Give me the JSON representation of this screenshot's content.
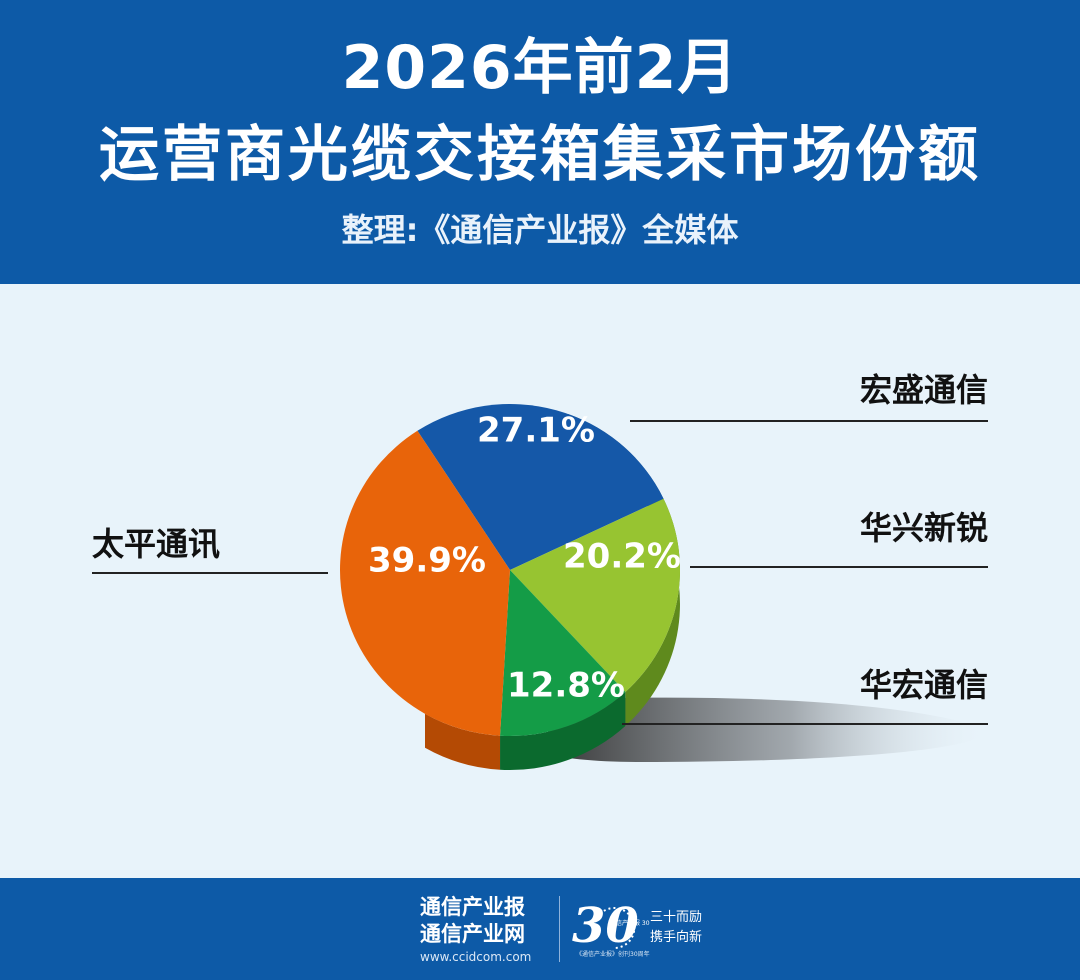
{
  "header": {
    "title_line1": "2026年前2月",
    "title_line2": "运营商光缆交接箱集采市场份额",
    "subtitle": "整理:《通信产业报》全媒体"
  },
  "chart_data": {
    "type": "pie",
    "title": "2026年前2月 运营商光缆交接箱集采市场份额",
    "unit": "%",
    "slices": [
      {
        "label": "宏盛通信",
        "value": 27.1,
        "value_text": "27.1%",
        "color": "#1558a8",
        "side_color": "#0d3f7e"
      },
      {
        "label": "华兴新锐",
        "value": 20.2,
        "value_text": "20.2%",
        "color": "#97c431",
        "side_color": "#5f8a1d"
      },
      {
        "label": "华宏通信",
        "value": 12.8,
        "value_text": "12.8%",
        "color": "#149c47",
        "side_color": "#0b6a2e"
      },
      {
        "label": "太平通讯",
        "value": 39.9,
        "value_text": "39.9%",
        "color": "#e8640a",
        "side_color": "#b44a04"
      }
    ]
  },
  "footer": {
    "brand_line1": "通信产业报",
    "brand_line2": "通信产业网",
    "url": "www.ccidcom.com",
    "anniversary_number": "30",
    "anniversary_small": "通信产业报 30 YEARS",
    "anniversary_caption": "《通信产业报》创刊30周年",
    "slogan_line1": "三十而励",
    "slogan_line2": "携手向新",
    "colors": {
      "band": "#0d5aa7",
      "background": "#e8f3fa"
    }
  }
}
